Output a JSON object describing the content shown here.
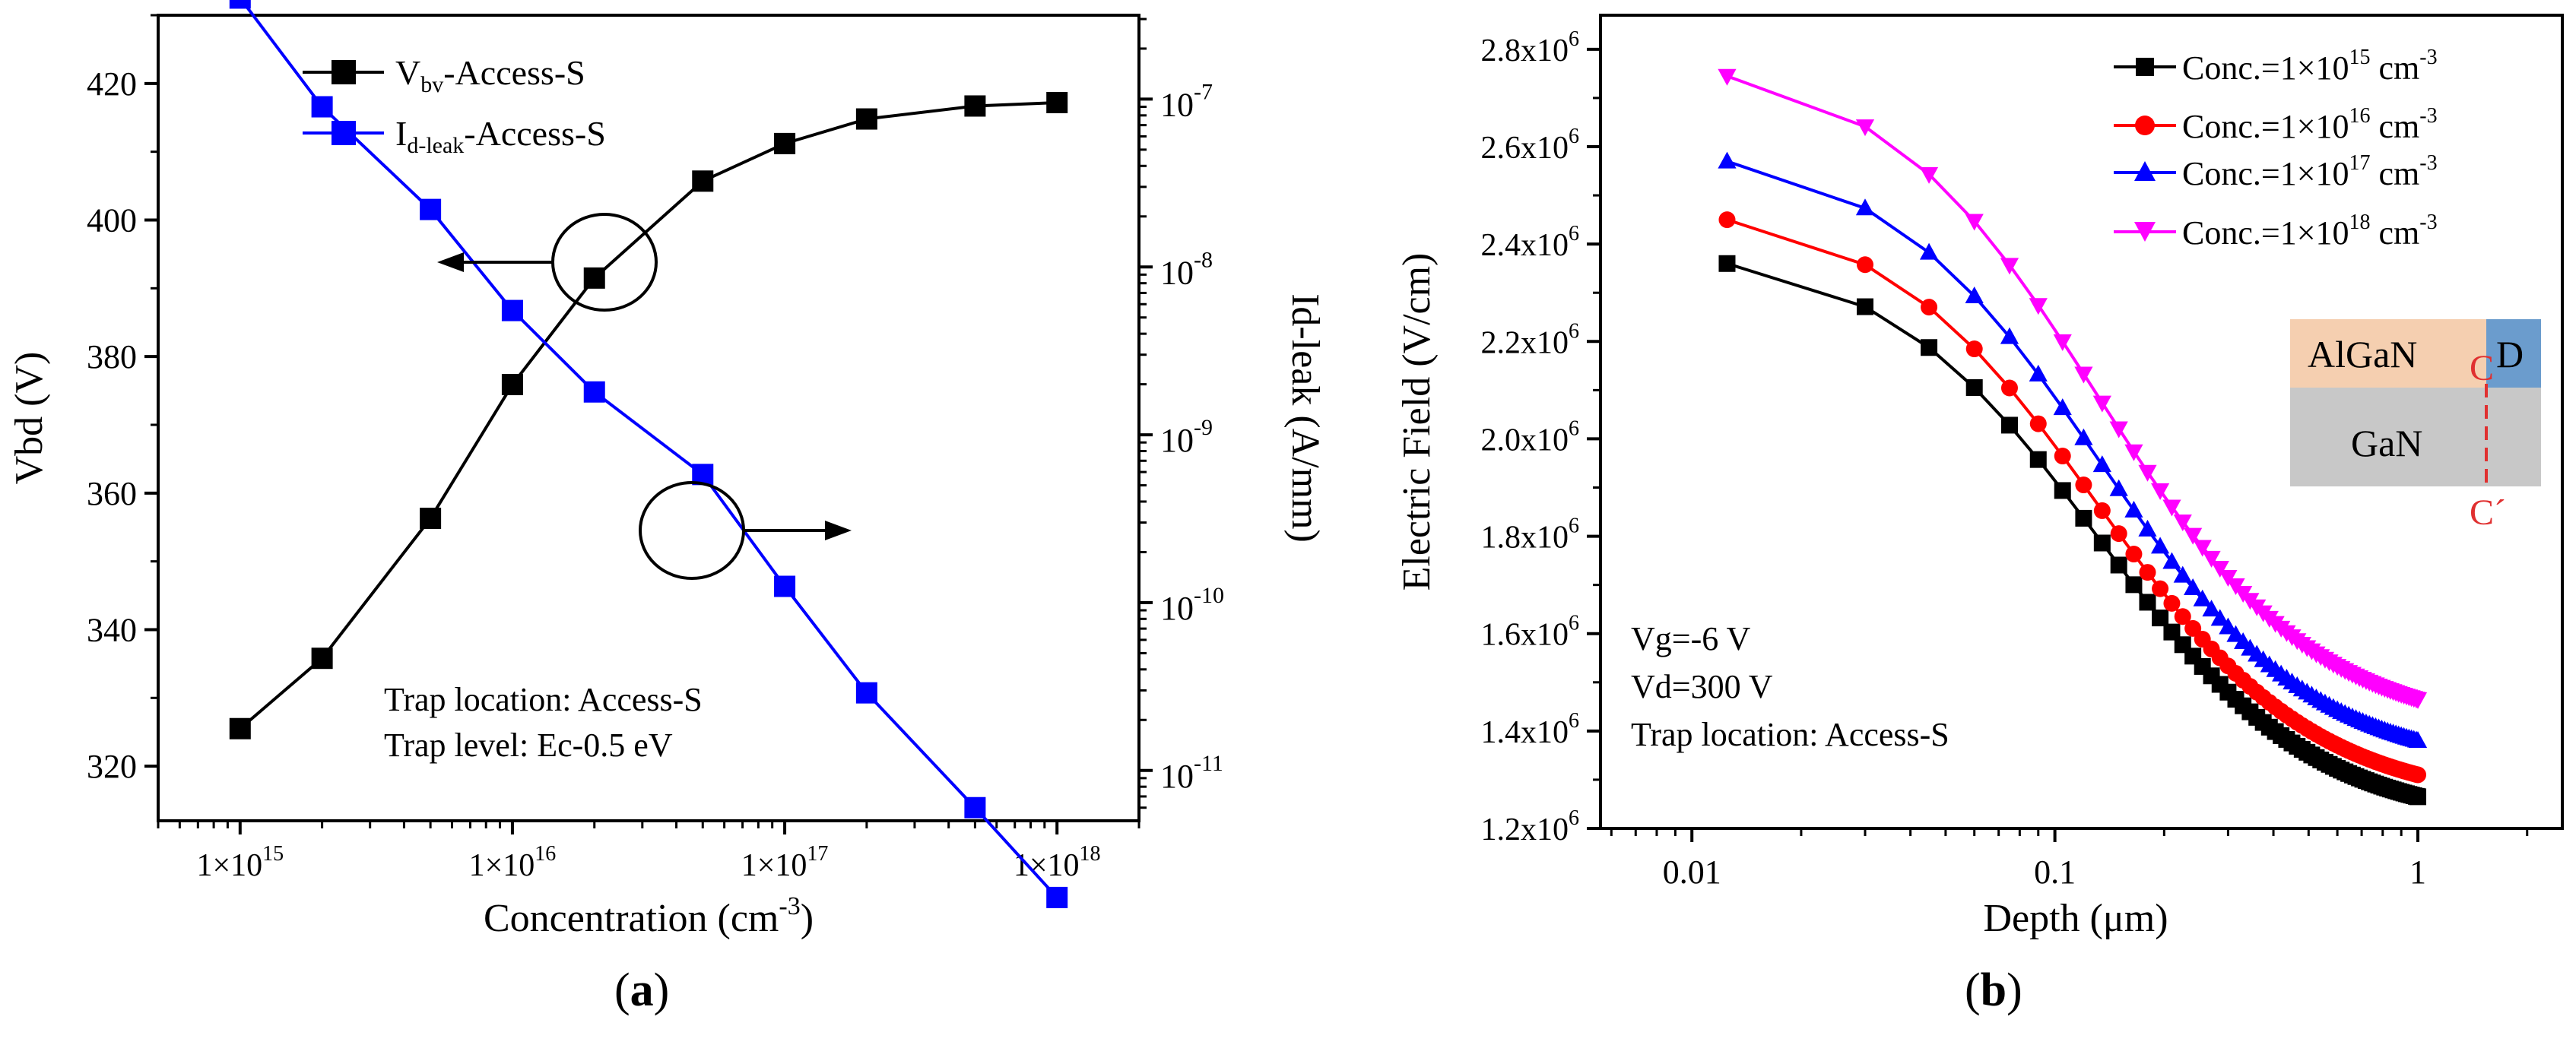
{
  "chart_data": [
    {
      "id": "a",
      "type": "line",
      "caption": "a",
      "x_log": true,
      "x": [
        1000000000000000.0,
        2000000000000000.0,
        5000000000000000.0,
        1e+16,
        2e+16,
        5e+16,
        1e+17,
        2e+17,
        5e+17,
        1e+18
      ],
      "x_ticks": [
        1000000000000000.0,
        1e+16,
        1e+17,
        1e+18
      ],
      "x_tick_labels": [
        "1×10",
        "1×10",
        "1×10",
        "1×10"
      ],
      "x_tick_exponents": [
        "15",
        "16",
        "17",
        "18"
      ],
      "xlim": [
        500000000000000.0,
        2e+18
      ],
      "xlabel": "Concentration (cm",
      "xlabel_sup": "-3",
      "xlabel_end": ")",
      "ylabel_left": "Vbd (V)",
      "ylim_left": [
        312,
        430
      ],
      "y_ticks_left": [
        320,
        340,
        360,
        380,
        400,
        420
      ],
      "ylabel_right": "Id-leak (A/mm)",
      "ylim_right_log10": [
        -11.3,
        -6.5
      ],
      "y_ticks_right": [
        -11,
        -10,
        -9,
        -8,
        -7
      ],
      "y_tick_labels_right": [
        "10",
        "10",
        "10",
        "10",
        "10"
      ],
      "y_tick_exponents_right": [
        "-11",
        "-10",
        "-9",
        "-8",
        "-7"
      ],
      "series": [
        {
          "name": "Vbv-Access-S",
          "legend_main": "V",
          "legend_sub": "bv",
          "legend_rest": "-Access-S",
          "axis": "left",
          "color": "#000000",
          "marker": "square",
          "values": [
            325.5,
            335.8,
            356.3,
            375.9,
            391.5,
            405.7,
            411.2,
            414.8,
            416.7,
            417.2
          ]
        },
        {
          "name": "Id-leak-Access-S",
          "legend_main": "I",
          "legend_sub": "d-leak",
          "legend_rest": "-Access-S",
          "axis": "right",
          "color": "#0000ff",
          "marker": "square",
          "values": [
            4e-07,
            9e-08,
            2.2e-08,
            5.5e-09,
            1.8e-09,
            5.8e-10,
            1.25e-10,
            2.9e-11,
            6e-12,
            1.75e-12
          ]
        }
      ],
      "annotations": [
        "Trap location: Access-S",
        "Trap level: Ec-0.5 eV"
      ]
    },
    {
      "id": "b",
      "type": "line",
      "caption": "b",
      "x_log": true,
      "xlim": [
        0.0056,
        2.5
      ],
      "x_ticks": [
        0.01,
        0.1,
        1
      ],
      "x_tick_labels": [
        "0.01",
        "0.1",
        "1"
      ],
      "xlabel": "Depth (μm)",
      "ylabel": "Electric Field (V/cm)",
      "ylim": [
        1200000,
        2870000
      ],
      "y_ticks": [
        1200000,
        1400000,
        1600000,
        1800000,
        2000000,
        2200000,
        2400000,
        2600000,
        2800000
      ],
      "y_tick_labels": [
        "1.2x10",
        "1.4x10",
        "1.6x10",
        "1.8x10",
        "2.0x10",
        "2.2x10",
        "2.4x10",
        "2.6x10",
        "2.8x10"
      ],
      "y_tick_exponent": "6",
      "x": [
        0.0125,
        0.03,
        0.045,
        0.06,
        0.075,
        0.09,
        0.105,
        0.12,
        0.135,
        0.15,
        0.165,
        0.18,
        0.195,
        0.21,
        0.225,
        0.24,
        0.255,
        0.27,
        0.285,
        0.3,
        0.315,
        0.33,
        0.345,
        0.36,
        0.375,
        0.39,
        0.405,
        0.42,
        0.435,
        0.45,
        0.465,
        0.48,
        0.495,
        0.51,
        0.525,
        0.54,
        0.555,
        0.57,
        0.585,
        0.6,
        0.615,
        0.63,
        0.645,
        0.66,
        0.675,
        0.69,
        0.705,
        0.72,
        0.735,
        0.75,
        0.765,
        0.78,
        0.795,
        0.81,
        0.825,
        0.84,
        0.855,
        0.87,
        0.885,
        0.9,
        0.915,
        0.93,
        0.945,
        0.96,
        0.975,
        0.99,
        1.0
      ],
      "series": [
        {
          "name": "Conc.=1×10^15 cm^-3",
          "legend_text": "Conc.=1×10",
          "legend_exp": "15",
          "legend_unit": " cm",
          "legend_unit_exp": "-3",
          "color": "#000000",
          "marker": "square",
          "start": 2360000,
          "end": 1265000
        },
        {
          "name": "Conc.=1×10^16 cm^-3",
          "legend_text": "Conc.=1×10",
          "legend_exp": "16",
          "legend_unit": " cm",
          "legend_unit_exp": "-3",
          "color": "#ff0000",
          "marker": "circle",
          "start": 2450000,
          "end": 1310000
        },
        {
          "name": "Conc.=1×10^17 cm^-3",
          "legend_text": "Conc.=1×10",
          "legend_exp": "17",
          "legend_unit": " cm",
          "legend_unit_exp": "-3",
          "color": "#0000ff",
          "marker": "triangle-up",
          "start": 2570000,
          "end": 1380000
        },
        {
          "name": "Conc.=1×10^18 cm^-3",
          "legend_text": "Conc.=1×10",
          "legend_exp": "18",
          "legend_unit": " cm",
          "legend_unit_exp": "-3",
          "color": "#ff00ff",
          "marker": "triangle-down",
          "start": 2745000,
          "end": 1465000
        }
      ],
      "annotations": [
        "Vg=-6 V",
        "Vd=300 V",
        "Trap location: Access-S"
      ],
      "inset": {
        "layer_top": "AlGaN",
        "layer_bottom": "GaN",
        "electrode": "D",
        "cut_top": "C",
        "cut_bottom": "C´",
        "colors": {
          "algan": "#f5cfb0",
          "gan": "#c8c8c8",
          "drain": "#6b9ccd",
          "cut": "#e03030"
        }
      }
    }
  ]
}
